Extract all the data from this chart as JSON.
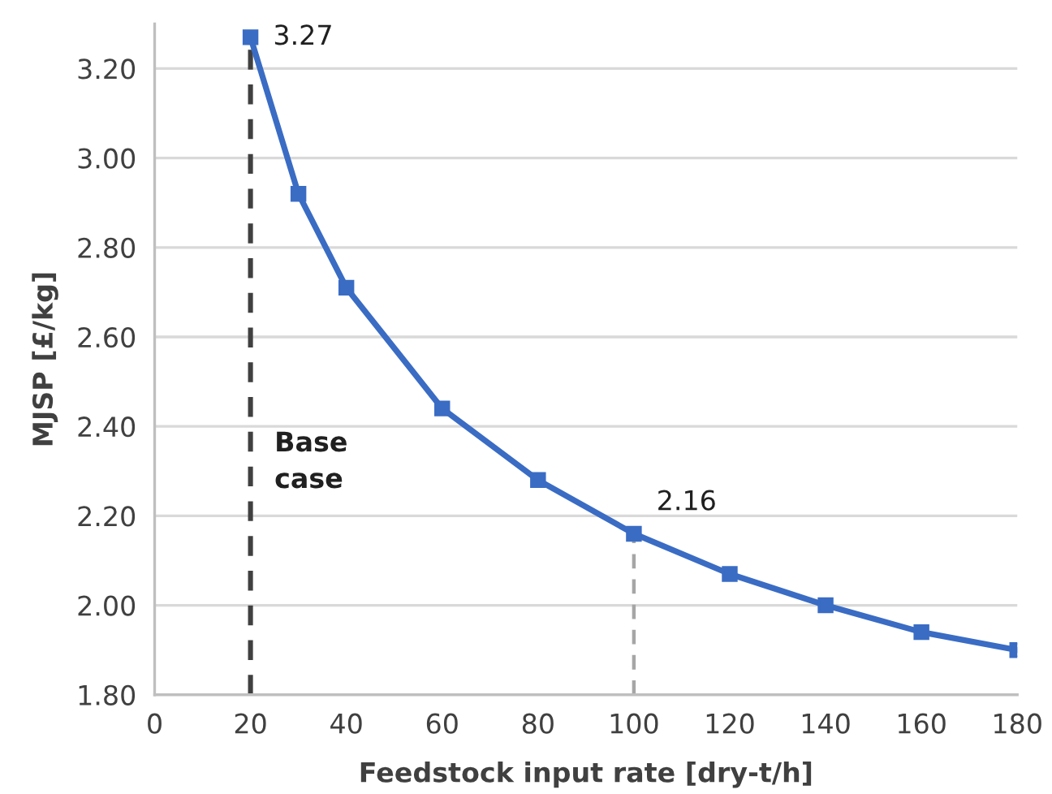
{
  "chart_data": {
    "type": "line",
    "xlabel": "Feedstock input rate [dry-t/h]",
    "ylabel": "MJSP [£/kg]",
    "x": [
      20,
      30,
      40,
      60,
      80,
      100,
      120,
      140,
      160,
      180
    ],
    "series": [
      {
        "color": "#3a6cc4",
        "values": [
          3.27,
          2.92,
          2.71,
          2.44,
          2.28,
          2.16,
          2.07,
          2.0,
          1.94,
          1.9
        ]
      }
    ],
    "xlim": [
      0,
      180
    ],
    "xticks": [
      0,
      20,
      40,
      60,
      80,
      100,
      120,
      140,
      160,
      180
    ],
    "ylim": [
      1.8,
      3.3
    ],
    "yticks": [
      {
        "value": 1.8,
        "label": "1.80"
      },
      {
        "value": 2.0,
        "label": "2.00"
      },
      {
        "value": 2.2,
        "label": "2.20"
      },
      {
        "value": 2.4,
        "label": "2.40"
      },
      {
        "value": 2.6,
        "label": "2.60"
      },
      {
        "value": 2.8,
        "label": "2.80"
      },
      {
        "value": 3.0,
        "label": "3.00"
      },
      {
        "value": 3.2,
        "label": "3.20"
      }
    ],
    "ref_lines": [
      {
        "axis": "x",
        "value": 20,
        "label": "Base case",
        "color": "#404040",
        "line_style": "dashed"
      },
      {
        "axis": "x",
        "value": 100,
        "color": "#a6a6a6",
        "line_style": "dashed"
      }
    ],
    "annotations": [
      {
        "text": "3.27",
        "x": 20,
        "y": 3.27
      },
      {
        "text": "2.16",
        "x": 100,
        "y": 2.16
      }
    ],
    "grid": "y",
    "marker": "square",
    "line_style": "solid"
  }
}
